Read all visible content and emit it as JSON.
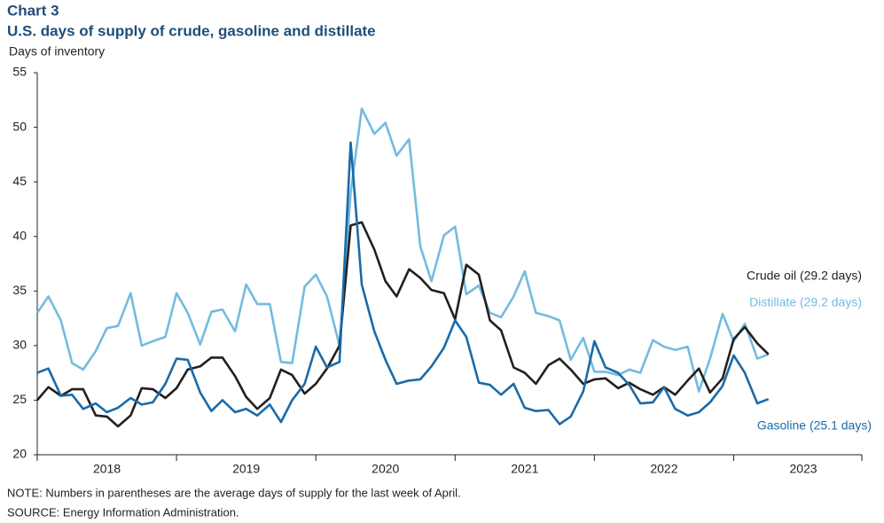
{
  "chart_data": {
    "type": "line",
    "label": "Chart 3",
    "title": "U.S. days of supply of crude, gasoline and distillate",
    "y_axis_label": "Days of inventory",
    "x": [
      2018,
      2018.08,
      2018.17,
      2018.25,
      2018.33,
      2018.42,
      2018.5,
      2018.58,
      2018.67,
      2018.75,
      2018.83,
      2018.92,
      2019,
      2019.08,
      2019.17,
      2019.25,
      2019.33,
      2019.42,
      2019.5,
      2019.58,
      2019.67,
      2019.75,
      2019.83,
      2019.92,
      2020,
      2020.08,
      2020.17,
      2020.25,
      2020.33,
      2020.42,
      2020.5,
      2020.58,
      2020.67,
      2020.75,
      2020.83,
      2020.92,
      2021,
      2021.08,
      2021.17,
      2021.25,
      2021.33,
      2021.42,
      2021.5,
      2021.58,
      2021.67,
      2021.75,
      2021.83,
      2021.92,
      2022,
      2022.08,
      2022.17,
      2022.25,
      2022.33,
      2022.42,
      2022.5,
      2022.58,
      2022.67,
      2022.75,
      2022.83,
      2022.92,
      2023,
      2023.08,
      2023.17,
      2023.25
    ],
    "xlim": [
      2018,
      2023.92
    ],
    "xticks": [
      2018,
      2019,
      2020,
      2021,
      2022,
      2023
    ],
    "ylim": [
      20,
      55
    ],
    "yticks": [
      20,
      25,
      30,
      35,
      40,
      45,
      50,
      55
    ],
    "grid": false,
    "series": [
      {
        "name": "Distillate (29.2 days)",
        "color": "#74bbdf",
        "values": [
          33.0,
          34.5,
          32.3,
          28.4,
          27.8,
          29.5,
          31.6,
          31.8,
          34.8,
          30.0,
          30.4,
          30.8,
          34.8,
          33.0,
          30.1,
          33.1,
          33.3,
          31.3,
          35.6,
          33.8,
          33.8,
          28.5,
          28.4,
          35.4,
          36.5,
          34.5,
          30.0,
          44.0,
          51.7,
          49.4,
          50.4,
          47.4,
          48.9,
          39.1,
          35.9,
          40.1,
          40.9,
          34.7,
          35.5,
          33.0,
          32.6,
          34.5,
          36.8,
          33.0,
          32.7,
          32.3,
          28.7,
          30.7,
          27.6,
          27.6,
          27.3,
          27.8,
          27.5,
          30.5,
          29.9,
          29.6,
          29.9,
          25.8,
          28.8,
          32.9,
          30.4,
          32.0,
          28.8,
          29.2
        ]
      },
      {
        "name": "Crude oil (29.2 days)",
        "color": "#231f20",
        "values": [
          25.0,
          26.2,
          25.4,
          26.0,
          26.0,
          23.6,
          23.5,
          22.6,
          23.6,
          26.1,
          26.0,
          25.2,
          26.1,
          27.8,
          28.1,
          28.9,
          28.9,
          27.2,
          25.3,
          24.2,
          25.2,
          27.8,
          27.3,
          25.6,
          26.5,
          27.9,
          30.0,
          41.0,
          41.3,
          38.8,
          35.9,
          34.5,
          37.0,
          36.2,
          35.1,
          34.8,
          32.4,
          37.4,
          36.5,
          32.3,
          31.4,
          28.0,
          27.5,
          26.5,
          28.2,
          28.8,
          27.8,
          26.5,
          26.9,
          27.0,
          26.1,
          26.6,
          26.0,
          25.5,
          26.2,
          25.5,
          26.8,
          27.9,
          25.7,
          27.0,
          30.6,
          31.7,
          30.2,
          29.2
        ]
      },
      {
        "name": "Gasoline (25.1 days)",
        "color": "#1a6aa8",
        "values": [
          27.5,
          27.9,
          25.4,
          25.5,
          24.2,
          24.7,
          23.9,
          24.3,
          25.2,
          24.6,
          24.8,
          26.5,
          28.8,
          28.7,
          25.7,
          24.0,
          25.0,
          23.9,
          24.2,
          23.6,
          24.6,
          23.0,
          25.0,
          26.5,
          29.9,
          28.0,
          28.5,
          48.6,
          35.6,
          31.3,
          28.7,
          26.5,
          26.8,
          26.9,
          28.1,
          29.8,
          32.3,
          30.8,
          26.6,
          26.4,
          25.5,
          26.5,
          24.3,
          24.0,
          24.1,
          22.8,
          23.5,
          25.8,
          30.4,
          28.0,
          27.5,
          26.4,
          24.7,
          24.8,
          26.2,
          24.2,
          23.6,
          23.9,
          24.8,
          26.3,
          29.1,
          27.5,
          24.7,
          25.1
        ]
      }
    ],
    "note": "NOTE: Numbers in parentheses are the average days of supply for the last week of April.",
    "source": "SOURCE: Energy Information Administration."
  }
}
